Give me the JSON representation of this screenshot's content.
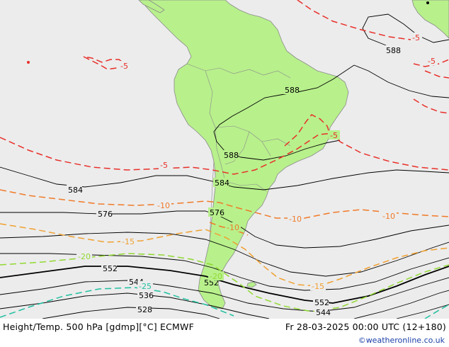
{
  "colors": {
    "ocean": "#ececec",
    "land": "#b8f08c",
    "coast": "#8a8a8a",
    "height_contour": "#000000",
    "temp_minus5": "#e8302a",
    "temp_minus10": "#f07a28",
    "temp_minus15": "#f0a030",
    "temp_minus20": "#90d830",
    "temp_minus25": "#20c0a0",
    "credit": "#1a3fa8"
  },
  "height_labels": [
    "588",
    "588",
    "588",
    "584",
    "584",
    "576",
    "576",
    "552",
    "552",
    "552",
    "544",
    "544",
    "536",
    "528"
  ],
  "temp_labels": [
    "-5",
    "-5",
    "-5",
    "-5",
    "-5",
    "-10",
    "-10",
    "-10",
    "-10",
    "-15",
    "-15",
    "-20",
    "-20",
    "-25"
  ],
  "footer": {
    "title": "Height/Temp. 500 hPa [gdmp][°C] ECMWF",
    "date": "Fr 28-03-2025 00:00 UTC (12+180)",
    "credit": "©weatheronline.co.uk"
  }
}
